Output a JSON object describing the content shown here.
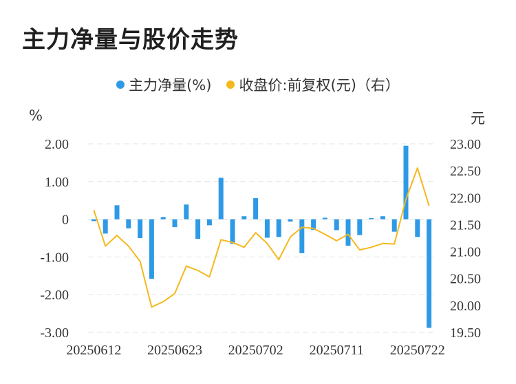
{
  "title": "主力净量与股价走势",
  "legend": {
    "series1": "主力净量(%)",
    "series2": "收盘价:前复权(元)（右）"
  },
  "colors": {
    "bar": "#2e9ae6",
    "line": "#f5b81c",
    "grid": "#e3e3e3"
  },
  "chart_data": {
    "type": "bar+line",
    "left_unit": "%",
    "right_unit": "元",
    "left_ticks": [
      "2.00",
      "1.00",
      "0",
      "-1.00",
      "-2.00",
      "-3.00"
    ],
    "left_tick_values": [
      2,
      1,
      0,
      -1,
      -2,
      -3
    ],
    "right_ticks": [
      "23.00",
      "22.50",
      "22.00",
      "21.50",
      "21.00",
      "20.50",
      "20.00",
      "19.50"
    ],
    "right_tick_values": [
      23,
      22.5,
      22,
      21.5,
      21,
      20.5,
      20,
      19.5
    ],
    "ylim_left": [
      -3,
      2
    ],
    "ylim_right": [
      19.5,
      23
    ],
    "x_tick_labels": [
      "20250612",
      "20250623",
      "20250702",
      "20250711",
      "20250722"
    ],
    "x_tick_indices": [
      0,
      7,
      14,
      21,
      28
    ],
    "series": [
      {
        "name": "主力净量(%)",
        "type": "bar",
        "values": [
          -0.05,
          -0.38,
          0.37,
          -0.24,
          -0.5,
          -1.58,
          0.06,
          -0.21,
          0.39,
          -0.52,
          -0.16,
          1.1,
          -0.65,
          0.08,
          0.56,
          -0.49,
          -0.47,
          -0.06,
          -0.9,
          -0.28,
          0.04,
          -0.29,
          -0.7,
          -0.42,
          0.03,
          0.08,
          -0.33,
          1.95,
          -0.47,
          -2.88
        ]
      },
      {
        "name": "收盘价:前复权(元)",
        "type": "line",
        "values": [
          21.77,
          21.1,
          21.3,
          21.1,
          20.82,
          19.97,
          20.07,
          20.22,
          20.73,
          20.65,
          20.53,
          21.22,
          21.17,
          21.08,
          21.35,
          21.15,
          20.85,
          21.27,
          21.45,
          21.43,
          21.32,
          21.2,
          21.32,
          21.03,
          21.08,
          21.15,
          21.14,
          21.97,
          22.55,
          21.85
        ]
      }
    ]
  }
}
